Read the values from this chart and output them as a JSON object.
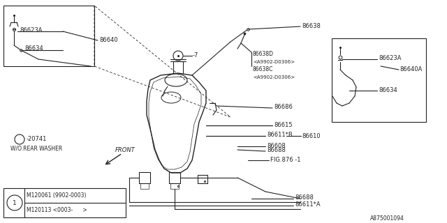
{
  "bg_color": "#ffffff",
  "line_color": "#222222",
  "fig_number": "A875001094",
  "legend": {
    "row1": "M120061 (9902-0003)",
    "row2": "M120113 <0003-      >"
  }
}
